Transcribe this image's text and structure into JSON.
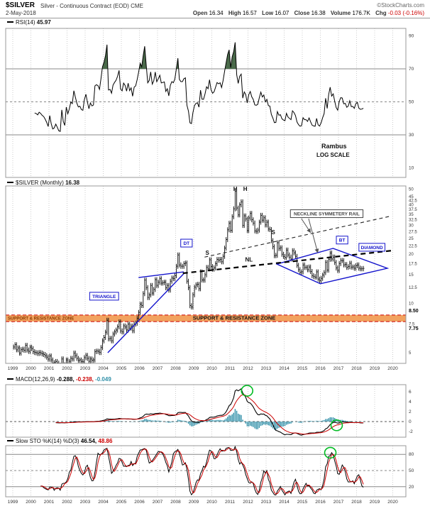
{
  "header": {
    "symbol": "$SILVER",
    "description": "Silver - Continuous Contract (EOD) CME",
    "copyright": "©StockCharts.com",
    "date": "2-May-2018",
    "quote": [
      {
        "label": "Open",
        "value": "16.34"
      },
      {
        "label": "High",
        "value": "16.57"
      },
      {
        "label": "Low",
        "value": "16.07"
      },
      {
        "label": "Close",
        "value": "16.38"
      },
      {
        "label": "Volume",
        "value": "176.7K"
      },
      {
        "label": "Chg",
        "value": "-0.03 (-0.16%)"
      }
    ]
  },
  "colors": {
    "blue": "#1414cc",
    "red": "#cc0000",
    "grid": "#cccccc",
    "border": "#999999",
    "threshold": "#888888",
    "rsi_fill": "#4a6a4a",
    "hist": "#2f8fa8",
    "zone": "#f2a25f",
    "zone_text": "#8a3c00",
    "circle": "#00bb22",
    "bar": "#000000"
  },
  "panels": {
    "rsi": {
      "label": "RSI(14)",
      "value": "45.97",
      "watermark1": "Rambus",
      "watermark2": "LOG SCALE"
    },
    "price": {
      "label": "$SILVER (Monthly)",
      "value": "16.38",
      "zone_left": "SUPPORT & RESISTANCE ZONE",
      "zone_center": "SUPPORT & RESISTANCE ZONE",
      "zone_upper": "8.50",
      "zone_lower": "7.75"
    },
    "macd": {
      "label": "MACD(12,26,9)",
      "v1": "-0.288,",
      "v2": "-0.238,",
      "v3": "-0.049"
    },
    "sto": {
      "label": "Slow STO %K(14) %D(3)",
      "v1": "46.54,",
      "v2": "48.86"
    }
  },
  "axis": {
    "years": [
      1999,
      2000,
      2001,
      2002,
      2003,
      2004,
      2005,
      2006,
      2007,
      2008,
      2009,
      2010,
      2011,
      2012,
      2013,
      2014,
      2015,
      2016,
      2017,
      2018,
      2019,
      2020
    ],
    "price_ticks": [
      50,
      45,
      42.5,
      40,
      37.5,
      35,
      32.5,
      30,
      27.5,
      25,
      22.5,
      20,
      17.5,
      15,
      12.5,
      10,
      7.5,
      5
    ],
    "rsi_ticks": [
      90,
      70,
      50,
      30,
      10
    ],
    "macd_ticks": [
      6,
      4,
      2,
      0,
      -2
    ],
    "sto_ticks": [
      80,
      50,
      20
    ]
  },
  "chart_data": {
    "type": "ohlc-bar",
    "frequency": "monthly",
    "start_year": 1999,
    "log_scale": true,
    "ylim": [
      4.4,
      52
    ],
    "title": "$SILVER (Monthly) 16.38",
    "close": [
      5.42,
      5.6,
      5.21,
      5.35,
      4.98,
      5.22,
      5.26,
      5.18,
      5.55,
      5.2,
      5.1,
      5.41,
      5.3,
      5.08,
      5.02,
      5.0,
      4.95,
      5.02,
      4.98,
      4.92,
      4.88,
      4.8,
      4.7,
      4.57,
      4.78,
      4.52,
      4.33,
      4.35,
      4.42,
      4.32,
      4.2,
      4.18,
      4.58,
      4.22,
      4.08,
      4.52,
      4.3,
      4.43,
      4.62,
      4.58,
      4.98,
      4.8,
      4.62,
      4.5,
      4.52,
      4.42,
      4.4,
      4.67,
      4.82,
      4.62,
      4.43,
      4.58,
      4.5,
      4.52,
      5.08,
      5.12,
      5.1,
      5.02,
      5.38,
      5.92,
      6.2,
      6.68,
      7.9,
      6.08,
      6.12,
      5.92,
      6.5,
      6.7,
      6.88,
      7.2,
      7.72,
      6.8,
      6.7,
      7.3,
      7.18,
      6.88,
      7.48,
      7.08,
      7.28,
      6.82,
      7.48,
      7.58,
      8.1,
      8.82,
      9.9,
      9.72,
      11.48,
      13.88,
      12.5,
      10.88,
      11.28,
      12.88,
      11.58,
      12.18,
      13.98,
      12.88,
      13.48,
      14.18,
      13.32,
      13.4,
      13.5,
      12.48,
      12.88,
      12.08,
      13.68,
      14.3,
      14.18,
      14.78,
      16.88,
      19.8,
      17.2,
      16.88,
      16.88,
      17.5,
      17.68,
      13.68,
      12.48,
      9.7,
      9.52,
      11.3,
      12.58,
      13.0,
      13.1,
      12.3,
      15.6,
      13.92,
      13.9,
      14.98,
      16.6,
      16.28,
      18.48,
      16.82,
      16.2,
      16.5,
      17.5,
      18.58,
      18.4,
      18.6,
      17.98,
      19.4,
      21.8,
      24.58,
      28.2,
      30.92,
      28.0,
      33.9,
      37.88,
      48.58,
      38.3,
      34.78,
      40.08,
      41.78,
      30.0,
      34.3,
      32.8,
      27.9,
      33.3,
      35.5,
      32.48,
      31.0,
      27.78,
      27.6,
      28.1,
      31.4,
      34.58,
      32.3,
      33.4,
      30.2,
      31.4,
      28.5,
      28.3,
      24.2,
      22.2,
      19.6,
      19.7,
      23.5,
      21.7,
      21.9,
      20.0,
      19.4,
      19.1,
      21.2,
      19.8,
      19.2,
      18.7,
      21.0,
      20.4,
      19.4,
      17.1,
      16.1,
      15.5,
      15.6,
      17.2,
      16.6,
      16.6,
      16.1,
      16.7,
      15.7,
      14.8,
      14.6,
      14.5,
      15.6,
      14.1,
      13.8,
      14.24,
      14.9,
      15.44,
      17.82,
      16.0,
      18.62,
      20.34,
      18.7,
      19.2,
      17.8,
      16.48,
      15.92,
      17.54,
      18.32,
      18.26,
      17.22,
      17.3,
      16.62,
      16.8,
      17.6,
      16.68,
      16.72,
      16.42,
      17.0,
      17.2,
      16.44,
      16.28,
      16.3,
      16.38
    ],
    "indicators": {
      "rsi_period": 14,
      "macd_fast": 12,
      "macd_slow": 26,
      "macd_signal": 9,
      "sto_k": 14,
      "sto_d": 3
    },
    "support_zone": [
      7.75,
      8.5
    ],
    "overlays": [
      {
        "kind": "line",
        "color": "#1414cc",
        "w": 1.4,
        "pts": [
          [
            2004.25,
            5.0
          ],
          [
            2008.45,
            15.2
          ]
        ]
      },
      {
        "kind": "line",
        "color": "#1414cc",
        "w": 1.4,
        "pts": [
          [
            2005.95,
            14.4
          ],
          [
            2008.45,
            15.6
          ]
        ]
      },
      {
        "kind": "poly",
        "color": "#1414cc",
        "w": 1.4,
        "pts": [
          [
            2013.6,
            17.4
          ],
          [
            2016.7,
            21.7
          ],
          [
            2019.7,
            16.4
          ],
          [
            2016.0,
            13.2
          ]
        ]
      },
      {
        "kind": "line",
        "color": "#000000",
        "w": 2.2,
        "dash": "7,5",
        "pts": [
          [
            2008.4,
            15.3
          ],
          [
            2019.9,
            21.0
          ]
        ]
      },
      {
        "kind": "line",
        "color": "#222222",
        "w": 1.1,
        "dash": "5,4",
        "pts": [
          [
            2009.6,
            19.2
          ],
          [
            2019.8,
            34.0
          ]
        ]
      },
      {
        "kind": "arrow",
        "color": "#555555",
        "w": 1,
        "pts": [
          [
            2014.95,
            33.0
          ],
          [
            2015.45,
            27.2
          ]
        ]
      },
      {
        "kind": "arrow",
        "color": "#555555",
        "w": 1,
        "pts": [
          [
            2015.35,
            33.0
          ],
          [
            2015.85,
            20.5
          ]
        ]
      }
    ],
    "labels": [
      {
        "text": "TRIANGLE",
        "year": 2004.05,
        "price": 10.8,
        "style": "bluebox"
      },
      {
        "text": "DT",
        "year": 2008.6,
        "price": 22.8,
        "style": "bluebox"
      },
      {
        "text": "S",
        "year": 2009.75,
        "price": 19.8,
        "style": "plain"
      },
      {
        "text": "S",
        "year": 2013.4,
        "price": 26.5,
        "style": "plain"
      },
      {
        "text": "H",
        "year": 2011.3,
        "price": 48.8,
        "style": "plain"
      },
      {
        "text": "H",
        "year": 2011.85,
        "price": 48.8,
        "style": "plain"
      },
      {
        "text": "NL",
        "year": 2012.05,
        "price": 18.0,
        "style": "plain"
      },
      {
        "text": "BT",
        "year": 2017.2,
        "price": 23.8,
        "style": "bluebox"
      },
      {
        "text": "DIAMOND",
        "year": 2018.85,
        "price": 21.5,
        "style": "bluebox"
      },
      {
        "text": "NECKLINE SYMMETERY RAIL",
        "year": 2016.35,
        "price": 34.5,
        "style": "graybox"
      }
    ],
    "green_circles": [
      {
        "panel": "macd",
        "year": 2011.95,
        "value": 6.2
      },
      {
        "panel": "macd",
        "year": 2016.9,
        "value": -0.75
      },
      {
        "panel": "sto",
        "year": 2016.55,
        "value": 83
      }
    ]
  }
}
